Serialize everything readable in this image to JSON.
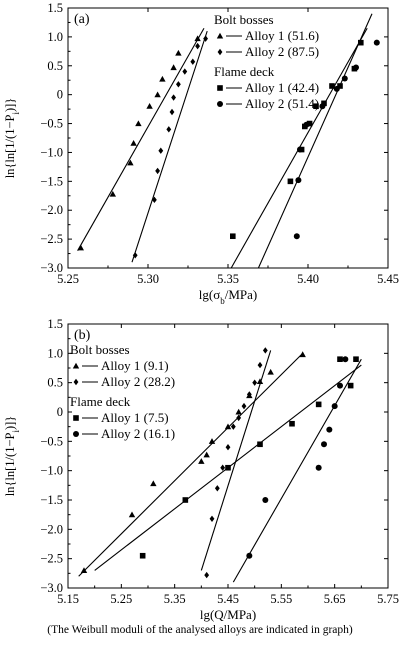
{
  "caption": "(The Weibull moduli of the analysed alloys are indicated in graph)",
  "ylabel_prefix": "ln{ln[1/(1−P",
  "ylabel_sub": "i",
  "ylabel_suffix": ")]}",
  "chart_data": [
    {
      "type": "scatter",
      "panel_label": "(a)",
      "xlabel_prefix": "lg(σ",
      "xlabel_sub": "b",
      "xlabel_suffix": "/MPa)",
      "xlim": [
        5.25,
        5.45
      ],
      "ylim": [
        -3.0,
        1.5
      ],
      "xticks": [
        5.25,
        5.3,
        5.35,
        5.4,
        5.45
      ],
      "xtick_labels": [
        "5.25",
        "5.30",
        "5.35",
        "5.40",
        "5.45"
      ],
      "yticks": [
        -3.0,
        -2.5,
        -2.0,
        -1.5,
        -1.0,
        -0.5,
        0,
        0.5,
        1.0,
        1.5
      ],
      "ytick_labels": [
        "−3.0",
        "−2.5",
        "−2.0",
        "−1.5",
        "−1.0",
        "−0.5",
        "0",
        "0.5",
        "1.0",
        "1.5"
      ],
      "legend_groups": [
        {
          "title": "Bolt bosses",
          "entries": [
            {
              "marker": "triangle",
              "label": "Alloy 1 (51.6)"
            },
            {
              "marker": "diamond",
              "label": "Alloy 2 (87.5)"
            }
          ]
        },
        {
          "title": "Flame deck",
          "entries": [
            {
              "marker": "square",
              "label": "Alloy 1 (42.4)"
            },
            {
              "marker": "circle",
              "label": "Alloy 2 (51.4)"
            }
          ]
        }
      ],
      "series": [
        {
          "marker": "triangle",
          "points": [
            [
              5.258,
              -2.65
            ],
            [
              5.278,
              -1.72
            ],
            [
              5.289,
              -1.18
            ],
            [
              5.291,
              -0.84
            ],
            [
              5.294,
              -0.5
            ],
            [
              5.301,
              -0.2
            ],
            [
              5.306,
              0.0
            ],
            [
              5.309,
              0.27
            ],
            [
              5.316,
              0.47
            ],
            [
              5.319,
              0.72
            ],
            [
              5.331,
              0.97
            ]
          ],
          "fit": [
            [
              5.256,
              -2.7
            ],
            [
              5.335,
              1.15
            ]
          ]
        },
        {
          "marker": "diamond",
          "points": [
            [
              5.292,
              -2.78
            ],
            [
              5.304,
              -1.82
            ],
            [
              5.306,
              -1.32
            ],
            [
              5.308,
              -0.97
            ],
            [
              5.313,
              -0.6
            ],
            [
              5.315,
              -0.3
            ],
            [
              5.316,
              -0.05
            ],
            [
              5.319,
              0.18
            ],
            [
              5.323,
              0.4
            ],
            [
              5.328,
              0.57
            ],
            [
              5.331,
              0.84
            ],
            [
              5.336,
              0.97
            ]
          ],
          "fit": [
            [
              5.29,
              -2.9
            ],
            [
              5.337,
              1.1
            ]
          ]
        },
        {
          "marker": "square",
          "points": [
            [
              5.353,
              -2.45
            ],
            [
              5.389,
              -1.5
            ],
            [
              5.396,
              -0.95
            ],
            [
              5.398,
              -0.55
            ],
            [
              5.401,
              -0.5
            ],
            [
              5.405,
              -0.2
            ],
            [
              5.41,
              -0.15
            ],
            [
              5.415,
              0.15
            ],
            [
              5.42,
              0.15
            ],
            [
              5.429,
              0.45
            ],
            [
              5.433,
              0.9
            ]
          ],
          "fit": [
            [
              5.352,
              -3.0
            ],
            [
              5.437,
              1.15
            ]
          ]
        },
        {
          "marker": "circle",
          "points": [
            [
              5.393,
              -2.45
            ],
            [
              5.394,
              -1.48
            ],
            [
              5.395,
              -0.95
            ],
            [
              5.399,
              -0.52
            ],
            [
              5.409,
              -0.2
            ],
            [
              5.418,
              0.1
            ],
            [
              5.423,
              0.28
            ],
            [
              5.43,
              0.47
            ],
            [
              5.443,
              0.9
            ]
          ],
          "fit": [
            [
              5.369,
              -3.0
            ],
            [
              5.44,
              1.4
            ]
          ]
        }
      ]
    },
    {
      "type": "scatter",
      "panel_label": "(b)",
      "xlabel_prefix": "lg(Q/MPa)",
      "xlabel_sub": "",
      "xlabel_suffix": "",
      "xlim": [
        5.15,
        5.75
      ],
      "ylim": [
        -3.0,
        1.5
      ],
      "xticks": [
        5.15,
        5.25,
        5.35,
        5.45,
        5.55,
        5.65,
        5.75
      ],
      "xtick_labels": [
        "5.15",
        "5.25",
        "5.35",
        "5.45",
        "5.55",
        "5.65",
        "5.75"
      ],
      "yticks": [
        -3.0,
        -2.5,
        -2.0,
        -1.5,
        -1.0,
        -0.5,
        0,
        0.5,
        1.0,
        1.5
      ],
      "ytick_labels": [
        "−3.0",
        "−2.5",
        "−2.0",
        "−1.5",
        "−1.0",
        "−0.5",
        "0",
        "0.5",
        "1.0",
        "1.5"
      ],
      "legend_groups": [
        {
          "title": "Bolt bosses",
          "entries": [
            {
              "marker": "triangle",
              "label": "Alloy 1 (9.1)"
            },
            {
              "marker": "diamond",
              "label": "Alloy 2 (28.2)"
            }
          ]
        },
        {
          "title": "Flame deck",
          "entries": [
            {
              "marker": "square",
              "label": "Alloy 1 (7.5)"
            },
            {
              "marker": "circle",
              "label": "Alloy 2 (16.1)"
            }
          ]
        }
      ],
      "series": [
        {
          "marker": "triangle",
          "points": [
            [
              5.18,
              -2.7
            ],
            [
              5.27,
              -1.75
            ],
            [
              5.31,
              -1.22
            ],
            [
              5.4,
              -0.84
            ],
            [
              5.41,
              -0.73
            ],
            [
              5.42,
              -0.5
            ],
            [
              5.45,
              -0.25
            ],
            [
              5.47,
              0.0
            ],
            [
              5.49,
              0.28
            ],
            [
              5.51,
              0.52
            ],
            [
              5.53,
              0.68
            ],
            [
              5.59,
              0.98
            ]
          ],
          "fit": [
            [
              5.17,
              -2.8
            ],
            [
              5.59,
              1.0
            ]
          ]
        },
        {
          "marker": "diamond",
          "points": [
            [
              5.41,
              -2.78
            ],
            [
              5.42,
              -1.82
            ],
            [
              5.43,
              -1.3
            ],
            [
              5.44,
              -0.95
            ],
            [
              5.45,
              -0.6
            ],
            [
              5.46,
              -0.25
            ],
            [
              5.47,
              -0.1
            ],
            [
              5.48,
              0.1
            ],
            [
              5.49,
              0.3
            ],
            [
              5.5,
              0.5
            ],
            [
              5.51,
              0.8
            ],
            [
              5.52,
              1.05
            ]
          ],
          "fit": [
            [
              5.4,
              -2.7
            ],
            [
              5.53,
              1.05
            ]
          ]
        },
        {
          "marker": "square",
          "points": [
            [
              5.29,
              -2.45
            ],
            [
              5.37,
              -1.5
            ],
            [
              5.45,
              -0.95
            ],
            [
              5.51,
              -0.55
            ],
            [
              5.57,
              -0.2
            ],
            [
              5.62,
              0.13
            ],
            [
              5.66,
              0.9
            ],
            [
              5.68,
              0.45
            ],
            [
              5.69,
              0.9
            ]
          ],
          "fit": [
            [
              5.2,
              -2.7
            ],
            [
              5.7,
              0.8
            ]
          ]
        },
        {
          "marker": "circle",
          "points": [
            [
              5.49,
              -2.45
            ],
            [
              5.52,
              -1.5
            ],
            [
              5.62,
              -0.95
            ],
            [
              5.63,
              -0.55
            ],
            [
              5.64,
              -0.3
            ],
            [
              5.65,
              0.1
            ],
            [
              5.66,
              0.45
            ],
            [
              5.67,
              0.9
            ]
          ],
          "fit": [
            [
              5.46,
              -2.9
            ],
            [
              5.7,
              0.9
            ]
          ]
        }
      ]
    }
  ]
}
